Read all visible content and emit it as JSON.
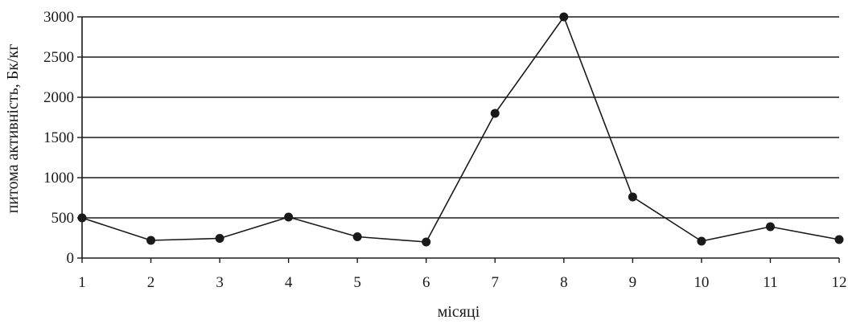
{
  "chart_data": {
    "type": "line",
    "title": "",
    "xlabel": "місяці",
    "ylabel": "питома активність, Бк/кг",
    "x": [
      1,
      2,
      3,
      4,
      5,
      6,
      7,
      8,
      9,
      10,
      11,
      12
    ],
    "x_tick_labels": [
      "1",
      "2",
      "3",
      "4",
      "5",
      "6",
      "7",
      "8",
      "9",
      "10",
      "11",
      "12"
    ],
    "y_tick_labels": [
      "0",
      "500",
      "1000",
      "1500",
      "2000",
      "2500",
      "3000"
    ],
    "series": [
      {
        "values": [
          500,
          220,
          245,
          510,
          265,
          200,
          1800,
          3000,
          760,
          210,
          390,
          230
        ]
      }
    ],
    "ylim": [
      0,
      3000
    ],
    "yticks": [
      0,
      500,
      1000,
      1500,
      2000,
      2500,
      3000
    ],
    "grid": "horizontal",
    "legend": "none",
    "line_color": "#1a1a1a",
    "marker": "filled-circle"
  }
}
